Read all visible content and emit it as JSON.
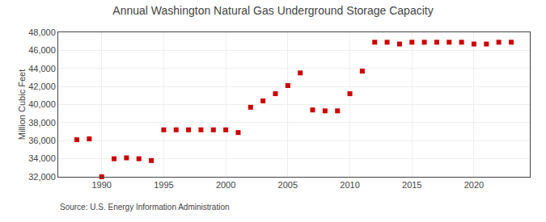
{
  "chart_data": {
    "type": "scatter",
    "title": "Annual Washington Natural Gas Underground Storage Capacity",
    "ylabel": "Million Cubic Feet",
    "annotations": [
      "Source: U.S. Energy Information Administration"
    ],
    "x": [
      1988,
      1989,
      1990,
      1991,
      1992,
      1993,
      1994,
      1995,
      1996,
      1997,
      1998,
      1999,
      2000,
      2001,
      2002,
      2003,
      2004,
      2005,
      2006,
      2007,
      2008,
      2009,
      2010,
      2011,
      2012,
      2013,
      2014,
      2015,
      2016,
      2017,
      2018,
      2019,
      2020,
      2021,
      2022,
      2023
    ],
    "values": [
      36100,
      36200,
      32000,
      34000,
      34100,
      34000,
      33800,
      37200,
      37200,
      37200,
      37200,
      37200,
      37200,
      36900,
      39700,
      40400,
      41200,
      42100,
      43500,
      39400,
      39300,
      39300,
      41200,
      43700,
      46900,
      46900,
      46700,
      46900,
      46900,
      46900,
      46900,
      46900,
      46700,
      46700,
      46900,
      46900
    ],
    "color": "#cc0000",
    "marker": "square",
    "xlim": [
      1986.5,
      2024.5
    ],
    "xticks": [
      1990,
      1995,
      2000,
      2005,
      2010,
      2015,
      2020
    ],
    "ylim": [
      32000,
      48000
    ],
    "yticks": [
      {
        "value": 32000,
        "label": "32,000"
      },
      {
        "value": 34000,
        "label": "34,000"
      },
      {
        "value": 36000,
        "label": "36,000"
      },
      {
        "value": 38000,
        "label": "38,000"
      },
      {
        "value": 40000,
        "label": "40,000"
      },
      {
        "value": 42000,
        "label": "42,000"
      },
      {
        "value": 44000,
        "label": "44,000"
      },
      {
        "value": 46000,
        "label": "46,000"
      },
      {
        "value": 48000,
        "label": "48,000"
      }
    ],
    "grid": true
  }
}
